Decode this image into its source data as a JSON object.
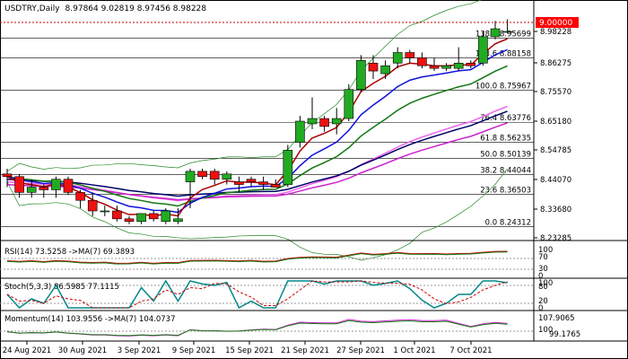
{
  "header": {
    "symbol": "USDTRY,Daily",
    "ohlc": "8.97864 9.02819 8.97456 8.98228"
  },
  "price_axis": {
    "labels": [
      "8.98228",
      "8.86275",
      "8.75570",
      "8.65180",
      "8.54785",
      "8.44070",
      "8.33680",
      "8.23285"
    ],
    "current_price": "9.00000",
    "current_price_color": "#ff0000"
  },
  "fibonacci": [
    {
      "label": "138.2 8.95699",
      "value": 8.95699
    },
    {
      "label": "123.6 8.88158",
      "value": 8.88158
    },
    {
      "label": "100.0 8.75967",
      "value": 8.75967
    },
    {
      "label": "76.4 8.63776",
      "value": 8.63776
    },
    {
      "label": "61.8 8.56235",
      "value": 8.56235
    },
    {
      "label": "50.0 8.50139",
      "value": 8.50139
    },
    {
      "label": "38.2 8.44044",
      "value": 8.44044
    },
    {
      "label": "23.6 8.36503",
      "value": 8.36503
    },
    {
      "label": "0.0 8.24312",
      "value": 8.24312
    }
  ],
  "rsi": {
    "label": "RSI(14) 73.5258 ->MA(7) 69.3893",
    "levels": [
      "100",
      "70",
      "30",
      "0"
    ]
  },
  "stoch": {
    "label": "Stoch(5,3,3) 86.5985 77.1115",
    "levels": [
      "100",
      "80",
      "20",
      "0"
    ]
  },
  "momentum": {
    "label": "Momentum(14) 103.9556 ->MA(7) 104.0737",
    "levels": [
      "107.9065",
      "100",
      "99.1765"
    ]
  },
  "time_axis": {
    "labels": [
      "24 Aug 2021",
      "30 Aug 2021",
      "3 Sep 2021",
      "9 Sep 2021",
      "15 Sep 2021",
      "21 Sep 2021",
      "27 Sep 2021",
      "1 Oct 2021",
      "7 Oct 2021"
    ]
  },
  "colors": {
    "bull": "#22aa22",
    "bear": "#ee1111",
    "ma_red": "#aa0000",
    "ma_blue": "#1111dd",
    "ma_green": "#117711",
    "ma_pink": "#ee66ee",
    "ma_magenta": "#cc22cc",
    "ma_navy": "#000066",
    "bollinger": "#228822"
  },
  "chart_data": {
    "type": "candlestick",
    "ylim": [
      8.2,
      9.05
    ],
    "candles": [
      {
        "o": 8.442,
        "h": 8.462,
        "l": 8.392,
        "c": 8.432
      },
      {
        "o": 8.432,
        "h": 8.442,
        "l": 8.352,
        "c": 8.372
      },
      {
        "o": 8.372,
        "h": 8.422,
        "l": 8.352,
        "c": 8.392
      },
      {
        "o": 8.392,
        "h": 8.402,
        "l": 8.352,
        "c": 8.382
      },
      {
        "o": 8.382,
        "h": 8.432,
        "l": 8.352,
        "c": 8.422
      },
      {
        "o": 8.422,
        "h": 8.432,
        "l": 8.362,
        "c": 8.372
      },
      {
        "o": 8.372,
        "h": 8.382,
        "l": 8.312,
        "c": 8.342
      },
      {
        "o": 8.342,
        "h": 8.372,
        "l": 8.282,
        "c": 8.302
      },
      {
        "o": 8.302,
        "h": 8.322,
        "l": 8.282,
        "c": 8.302
      },
      {
        "o": 8.302,
        "h": 8.322,
        "l": 8.262,
        "c": 8.272
      },
      {
        "o": 8.272,
        "h": 8.282,
        "l": 8.252,
        "c": 8.262
      },
      {
        "o": 8.262,
        "h": 8.292,
        "l": 8.252,
        "c": 8.292
      },
      {
        "o": 8.292,
        "h": 8.302,
        "l": 8.262,
        "c": 8.272
      },
      {
        "o": 8.262,
        "h": 8.312,
        "l": 8.252,
        "c": 8.302
      },
      {
        "o": 8.262,
        "h": 8.312,
        "l": 8.252,
        "c": 8.272
      },
      {
        "o": 8.412,
        "h": 8.462,
        "l": 8.312,
        "c": 8.452
      },
      {
        "o": 8.452,
        "h": 8.462,
        "l": 8.422,
        "c": 8.432
      },
      {
        "o": 8.452,
        "h": 8.462,
        "l": 8.402,
        "c": 8.422
      },
      {
        "o": 8.422,
        "h": 8.452,
        "l": 8.402,
        "c": 8.442
      },
      {
        "o": 8.412,
        "h": 8.432,
        "l": 8.372,
        "c": 8.402
      },
      {
        "o": 8.422,
        "h": 8.432,
        "l": 8.392,
        "c": 8.412
      },
      {
        "o": 8.412,
        "h": 8.432,
        "l": 8.382,
        "c": 8.402
      },
      {
        "o": 8.402,
        "h": 8.422,
        "l": 8.392,
        "c": 8.392
      },
      {
        "o": 8.402,
        "h": 8.552,
        "l": 8.392,
        "c": 8.532
      },
      {
        "o": 8.562,
        "h": 8.662,
        "l": 8.542,
        "c": 8.642
      },
      {
        "o": 8.632,
        "h": 8.732,
        "l": 8.612,
        "c": 8.652
      },
      {
        "o": 8.652,
        "h": 8.662,
        "l": 8.602,
        "c": 8.622
      },
      {
        "o": 8.632,
        "h": 8.692,
        "l": 8.592,
        "c": 8.652
      },
      {
        "o": 8.652,
        "h": 8.782,
        "l": 8.642,
        "c": 8.762
      },
      {
        "o": 8.762,
        "h": 8.892,
        "l": 8.752,
        "c": 8.872
      },
      {
        "o": 8.862,
        "h": 8.892,
        "l": 8.802,
        "c": 8.832
      },
      {
        "o": 8.822,
        "h": 8.872,
        "l": 8.802,
        "c": 8.852
      },
      {
        "o": 8.862,
        "h": 8.922,
        "l": 8.842,
        "c": 8.902
      },
      {
        "o": 8.902,
        "h": 8.912,
        "l": 8.862,
        "c": 8.882
      },
      {
        "o": 8.882,
        "h": 8.902,
        "l": 8.842,
        "c": 8.852
      },
      {
        "o": 8.852,
        "h": 8.882,
        "l": 8.832,
        "c": 8.842
      },
      {
        "o": 8.842,
        "h": 8.862,
        "l": 8.832,
        "c": 8.852
      },
      {
        "o": 8.842,
        "h": 8.922,
        "l": 8.832,
        "c": 8.862
      },
      {
        "o": 8.862,
        "h": 8.872,
        "l": 8.842,
        "c": 8.852
      },
      {
        "o": 8.862,
        "h": 8.982,
        "l": 8.852,
        "c": 8.962
      },
      {
        "o": 8.962,
        "h": 9.022,
        "l": 8.952,
        "c": 8.992
      },
      {
        "o": 8.979,
        "h": 9.028,
        "l": 8.975,
        "c": 8.982
      }
    ]
  }
}
